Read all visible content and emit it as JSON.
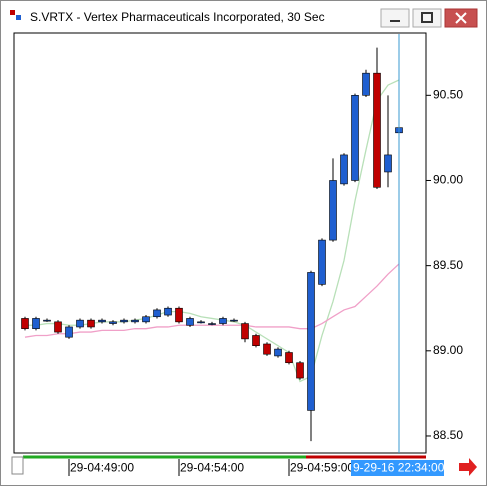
{
  "chart_data": {
    "type": "candlestick",
    "title": "S.VRTX - Vertex Pharmaceuticals Incorporated, 30 Sec",
    "categories": [
      null,
      null,
      null,
      null,
      "29-04:49:00",
      null,
      null,
      null,
      null,
      null,
      null,
      null,
      null,
      null,
      "29-04:54:00",
      null,
      null,
      null,
      null,
      null,
      null,
      null,
      null,
      null,
      "29-04:59:00",
      null,
      null,
      null,
      null,
      null,
      null,
      null,
      null,
      null,
      "9-29-16 22:34:00"
    ],
    "open": [
      89.19,
      89.13,
      89.18,
      89.17,
      89.08,
      89.14,
      89.18,
      89.17,
      89.16,
      89.17,
      89.17,
      89.17,
      89.2,
      89.21,
      89.25,
      89.15,
      89.17,
      89.16,
      89.16,
      89.18,
      89.16,
      89.09,
      89.04,
      88.97,
      88.99,
      88.93,
      88.65,
      89.39,
      89.65,
      89.98,
      90.0,
      90.5,
      90.63,
      90.05,
      90.28
    ],
    "high": [
      89.2,
      89.2,
      89.19,
      89.18,
      89.15,
      89.19,
      89.19,
      89.19,
      89.18,
      89.19,
      89.19,
      89.21,
      89.25,
      89.26,
      89.26,
      89.2,
      89.18,
      89.17,
      89.2,
      89.19,
      89.17,
      89.1,
      89.05,
      89.02,
      89.0,
      88.94,
      89.47,
      89.66,
      90.13,
      90.16,
      90.51,
      90.65,
      90.78,
      90.5,
      90.36
    ],
    "low": [
      89.12,
      89.12,
      89.17,
      89.1,
      89.07,
      89.13,
      89.13,
      89.16,
      89.15,
      89.16,
      89.16,
      89.16,
      89.19,
      89.2,
      89.16,
      89.14,
      89.16,
      89.15,
      89.15,
      89.17,
      89.05,
      89.02,
      88.97,
      88.96,
      88.92,
      88.83,
      88.47,
      89.38,
      89.64,
      89.97,
      89.99,
      90.49,
      89.95,
      89.96,
      89.91
    ],
    "close": [
      89.13,
      89.19,
      89.18,
      89.11,
      89.14,
      89.18,
      89.14,
      89.18,
      89.17,
      89.18,
      89.18,
      89.2,
      89.24,
      89.25,
      89.17,
      89.19,
      89.17,
      89.16,
      89.19,
      89.18,
      89.07,
      89.03,
      88.98,
      89.01,
      88.93,
      88.84,
      89.46,
      89.65,
      90.0,
      90.15,
      90.5,
      90.63,
      89.96,
      90.15,
      90.31
    ],
    "up_color": "#1f5fd0",
    "down_color": "#c00000",
    "lines": [
      {
        "color": "#b8e0b8",
        "values": [
          89.15,
          89.15,
          89.16,
          89.16,
          89.15,
          89.15,
          89.16,
          89.17,
          89.17,
          89.17,
          89.18,
          89.19,
          89.21,
          89.23,
          89.23,
          89.22,
          89.2,
          89.19,
          89.18,
          89.17,
          89.15,
          89.11,
          89.07,
          89.03,
          88.99,
          88.82,
          88.85,
          89.09,
          89.29,
          89.53,
          89.88,
          90.18,
          90.47,
          90.56,
          90.59
        ]
      },
      {
        "color": "#f0a0c8",
        "values": [
          89.08,
          89.09,
          89.09,
          89.1,
          89.1,
          89.11,
          89.11,
          89.12,
          89.12,
          89.12,
          89.13,
          89.13,
          89.14,
          89.14,
          89.15,
          89.15,
          89.15,
          89.15,
          89.15,
          89.15,
          89.15,
          89.14,
          89.14,
          89.14,
          89.14,
          89.13,
          89.13,
          89.16,
          89.2,
          89.24,
          89.26,
          89.32,
          89.38,
          89.45,
          89.51
        ]
      }
    ],
    "ylim": [
      88.4,
      90.86
    ],
    "yticks": [
      {
        "value": 88.5,
        "label": "88.50"
      },
      {
        "value": 89,
        "label": "89.00"
      },
      {
        "value": 89.5,
        "label": "89.50"
      },
      {
        "value": 90,
        "label": "90.00"
      },
      {
        "value": 90.5,
        "label": "90.50"
      }
    ]
  }
}
